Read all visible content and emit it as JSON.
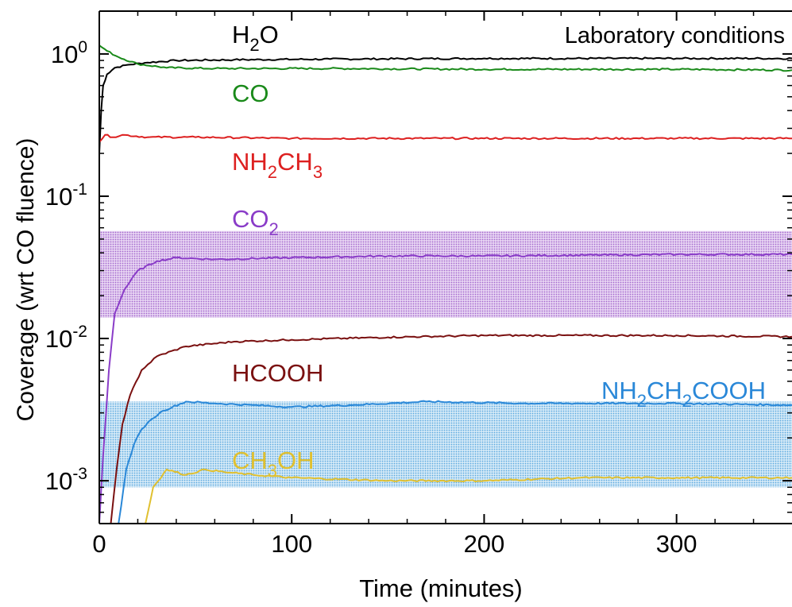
{
  "chart_data": {
    "type": "line",
    "title": "Laboratory conditions",
    "xlabel": "Time (minutes)",
    "ylabel": "Coverage (wrt CO fluence)",
    "xlim": [
      0,
      360
    ],
    "ylim": [
      0.0005,
      2
    ],
    "yscale": "log",
    "grid": false,
    "legend": "inline labels",
    "xticks": [
      0,
      100,
      200,
      300
    ],
    "xtick_labels": [
      "0",
      "100",
      "200",
      "300"
    ],
    "yticks": [
      {
        "base": "10",
        "exp": "0",
        "value": 1
      },
      {
        "base": "10",
        "exp": "-1",
        "value": 0.1
      },
      {
        "base": "10",
        "exp": "-2",
        "value": 0.01
      },
      {
        "base": "10",
        "exp": "-3",
        "value": 0.001
      }
    ],
    "bands": [
      {
        "series": "CO2",
        "y_range": [
          0.014,
          0.057
        ],
        "color": "#9a58c8"
      },
      {
        "series": "NH2CH2COOH",
        "y_range": [
          0.0009,
          0.0036
        ],
        "color": "#4aa0dc"
      }
    ],
    "series": [
      {
        "name": "H2O",
        "label": [
          {
            "t": "H"
          },
          {
            "t": "2",
            "sub": true
          },
          {
            "t": "O"
          }
        ],
        "color": "#000000",
        "points": [
          [
            0,
            0.2
          ],
          [
            1,
            0.4
          ],
          [
            2,
            0.6
          ],
          [
            4,
            0.72
          ],
          [
            8,
            0.8
          ],
          [
            15,
            0.84
          ],
          [
            25,
            0.87
          ],
          [
            40,
            0.9
          ],
          [
            70,
            0.91
          ],
          [
            120,
            0.92
          ],
          [
            200,
            0.93
          ],
          [
            300,
            0.93
          ],
          [
            360,
            0.93
          ]
        ]
      },
      {
        "name": "CO",
        "label": [
          {
            "t": "CO"
          }
        ],
        "color": "#1a8a1a",
        "points": [
          [
            0,
            1.15
          ],
          [
            4,
            1.05
          ],
          [
            10,
            0.95
          ],
          [
            20,
            0.85
          ],
          [
            35,
            0.8
          ],
          [
            60,
            0.79
          ],
          [
            120,
            0.79
          ],
          [
            200,
            0.78
          ],
          [
            300,
            0.78
          ],
          [
            360,
            0.77
          ]
        ]
      },
      {
        "name": "NH2CH3",
        "label": [
          {
            "t": "NH"
          },
          {
            "t": "2",
            "sub": true
          },
          {
            "t": "CH"
          },
          {
            "t": "3",
            "sub": true
          }
        ],
        "color": "#dd2020",
        "points": [
          [
            0,
            0.24
          ],
          [
            3,
            0.27
          ],
          [
            7,
            0.26
          ],
          [
            12,
            0.27
          ],
          [
            25,
            0.26
          ],
          [
            50,
            0.26
          ],
          [
            100,
            0.255
          ],
          [
            200,
            0.255
          ],
          [
            300,
            0.255
          ],
          [
            360,
            0.255
          ]
        ]
      },
      {
        "name": "CO2",
        "label": [
          {
            "t": "CO"
          },
          {
            "t": "2",
            "sub": true
          }
        ],
        "color": "#8a3cc8",
        "points": [
          [
            0,
            0.0005
          ],
          [
            2,
            0.0015
          ],
          [
            5,
            0.006
          ],
          [
            8,
            0.015
          ],
          [
            13,
            0.022
          ],
          [
            20,
            0.03
          ],
          [
            30,
            0.035
          ],
          [
            40,
            0.037
          ],
          [
            60,
            0.036
          ],
          [
            100,
            0.037
          ],
          [
            150,
            0.038
          ],
          [
            200,
            0.038
          ],
          [
            300,
            0.039
          ],
          [
            360,
            0.039
          ]
        ]
      },
      {
        "name": "HCOOH",
        "label": [
          {
            "t": "HCOOH"
          }
        ],
        "color": "#7a1010",
        "points": [
          [
            6,
            0.0005
          ],
          [
            9,
            0.0012
          ],
          [
            12,
            0.0025
          ],
          [
            16,
            0.004
          ],
          [
            22,
            0.006
          ],
          [
            30,
            0.0075
          ],
          [
            45,
            0.0088
          ],
          [
            70,
            0.0095
          ],
          [
            100,
            0.0098
          ],
          [
            150,
            0.0102
          ],
          [
            200,
            0.0105
          ],
          [
            300,
            0.0105
          ],
          [
            360,
            0.0103
          ]
        ]
      },
      {
        "name": "NH2CH2COOH",
        "label": [
          {
            "t": "NH"
          },
          {
            "t": "2",
            "sub": true
          },
          {
            "t": "CH"
          },
          {
            "t": "2",
            "sub": true
          },
          {
            "t": "COOH"
          }
        ],
        "color": "#2a88d8",
        "points": [
          [
            10,
            0.0005
          ],
          [
            14,
            0.0012
          ],
          [
            18,
            0.0018
          ],
          [
            22,
            0.0023
          ],
          [
            27,
            0.0027
          ],
          [
            33,
            0.0031
          ],
          [
            45,
            0.0036
          ],
          [
            60,
            0.0035
          ],
          [
            80,
            0.0034
          ],
          [
            100,
            0.0033
          ],
          [
            130,
            0.0034
          ],
          [
            170,
            0.0036
          ],
          [
            220,
            0.0035
          ],
          [
            300,
            0.0035
          ],
          [
            360,
            0.0034
          ]
        ]
      },
      {
        "name": "CH3OH",
        "label": [
          {
            "t": "CH"
          },
          {
            "t": "3",
            "sub": true
          },
          {
            "t": "OH"
          }
        ],
        "color": "#e0c030",
        "points": [
          [
            24,
            0.0005
          ],
          [
            28,
            0.0009
          ],
          [
            35,
            0.0012
          ],
          [
            45,
            0.0011
          ],
          [
            55,
            0.0012
          ],
          [
            65,
            0.00115
          ],
          [
            80,
            0.0011
          ],
          [
            100,
            0.00105
          ],
          [
            150,
            0.001
          ],
          [
            200,
            0.001
          ],
          [
            250,
            0.00105
          ],
          [
            300,
            0.00105
          ],
          [
            360,
            0.00105
          ]
        ]
      }
    ]
  }
}
